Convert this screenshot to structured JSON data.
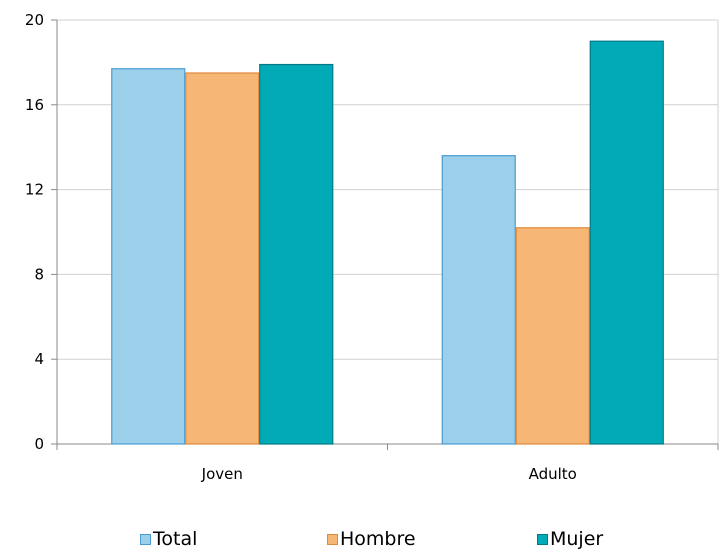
{
  "chart_data": {
    "type": "bar",
    "categories": [
      "Joven",
      "Adulto"
    ],
    "series": [
      {
        "name": "Total",
        "values": [
          17.7,
          13.6
        ],
        "color": "#9bcfea",
        "stroke": "#4a9cd1"
      },
      {
        "name": "Hombre",
        "values": [
          17.5,
          10.2
        ],
        "color": "#f6b675",
        "stroke": "#e08a3c"
      },
      {
        "name": "Mujer",
        "values": [
          17.9,
          19.0
        ],
        "color": "#00aab7",
        "stroke": "#007b86"
      }
    ],
    "yticks": [
      "0",
      "4",
      "8",
      "12",
      "16",
      "20"
    ],
    "ylim": [
      0,
      20
    ],
    "grid": true,
    "legend_position": "bottom"
  }
}
